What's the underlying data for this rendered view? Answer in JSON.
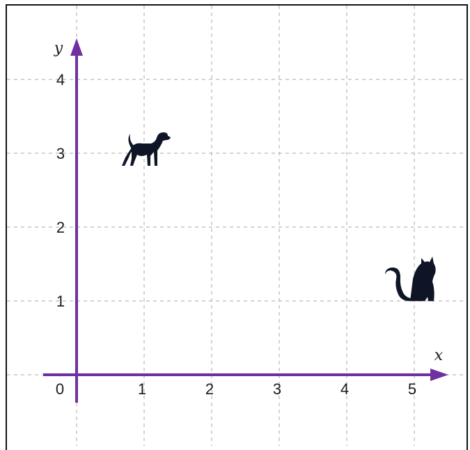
{
  "chart_data": {
    "type": "scatter",
    "xlabel": "x",
    "ylabel": "y",
    "xlim": [
      0,
      5
    ],
    "ylim": [
      0,
      4
    ],
    "x_ticks": [
      "0",
      "1",
      "2",
      "3",
      "4",
      "5"
    ],
    "y_ticks": [
      "1",
      "2",
      "3",
      "4"
    ],
    "grid": true,
    "axis_color": "#7030a0",
    "marker_color": "#0f1526",
    "points": [
      {
        "x": 1,
        "y": 3,
        "icon": "dog-icon"
      },
      {
        "x": 5,
        "y": 1.3,
        "icon": "cat-icon"
      }
    ]
  }
}
